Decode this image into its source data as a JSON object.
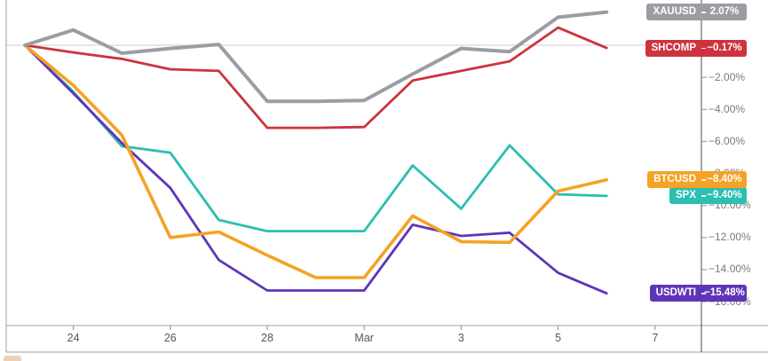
{
  "chart_data": {
    "type": "line",
    "title": "",
    "description": "Percent-change comparison chart of five symbols",
    "grid": "zero-line-only",
    "legend_position": "right-axis-badges",
    "ylim": [
      -16.8,
      2.9
    ],
    "x_tick_labels": [
      {
        "index": 1,
        "label": "24"
      },
      {
        "index": 3,
        "label": "26"
      },
      {
        "index": 5,
        "label": "28"
      },
      {
        "index": 7,
        "label": "Mar"
      },
      {
        "index": 9,
        "label": "3"
      },
      {
        "index": 11,
        "label": "5"
      },
      {
        "index": 13,
        "label": "7"
      }
    ],
    "y_ticks": [
      {
        "value": -2,
        "label": "−2.00%"
      },
      {
        "value": -4,
        "label": "−4.00%"
      },
      {
        "value": -6,
        "label": "−6.00%"
      },
      {
        "value": -8,
        "label": "−8.00%"
      },
      {
        "value": -10,
        "label": "−10.00%"
      },
      {
        "value": -12,
        "label": "−12.00%"
      },
      {
        "value": -14,
        "label": "−14.00%"
      },
      {
        "value": -16,
        "label": "−16.00%"
      }
    ],
    "series": [
      {
        "name": "SPX",
        "color": "#2abfb0",
        "last_change_label": "−9.40%",
        "values": [
          0,
          -2.9,
          -6.3,
          -6.7,
          -10.9,
          -11.6,
          -11.6,
          -11.6,
          -7.5,
          -10.2,
          -6.25,
          -9.3,
          -9.4
        ]
      },
      {
        "name": "USDWTI",
        "color": "#5e35b8",
        "last_change_label": "−15.48%",
        "values": [
          0,
          -3.0,
          -6.1,
          -8.9,
          -13.4,
          -15.3,
          -15.3,
          -15.3,
          -11.2,
          -11.9,
          -11.7,
          -14.2,
          -15.48
        ]
      },
      {
        "name": "BTCUSD",
        "color": "#f5a226",
        "last_change_label": "−8.40%",
        "values": [
          0,
          -2.5,
          -5.6,
          -12.0,
          -11.65,
          -13.1,
          -14.5,
          -14.5,
          -10.65,
          -12.25,
          -12.3,
          -9.1,
          -8.4
        ]
      },
      {
        "name": "SHCOMP",
        "color": "#cc333e",
        "last_change_label": "−0.17%",
        "values": [
          0,
          -0.45,
          -0.85,
          -1.5,
          -1.6,
          -5.15,
          -5.15,
          -5.1,
          -2.2,
          -1.6,
          -1.0,
          1.1,
          -0.17
        ]
      },
      {
        "name": "XAUUSD",
        "color": "#9b9da3",
        "last_change_label": "2.07%",
        "values": [
          0,
          0.95,
          -0.5,
          -0.2,
          0.05,
          -3.5,
          -3.5,
          -3.45,
          -1.8,
          -0.2,
          -0.4,
          1.75,
          2.07
        ]
      }
    ]
  }
}
